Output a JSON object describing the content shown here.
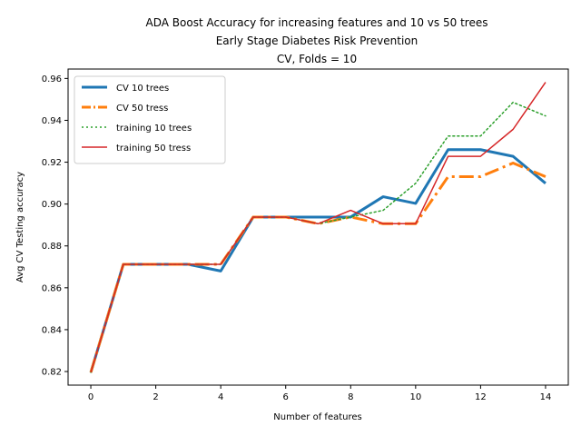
{
  "chart_data": {
    "type": "line",
    "title_lines": [
      "ADA Boost Accuracy for increasing features and 10 vs 50 trees",
      "Early Stage Diabetes Risk Prevention",
      "CV, Folds = 10"
    ],
    "xlabel": "Number of features",
    "ylabel": "Avg CV Testing accuracy",
    "xlim": [
      -0.7,
      14.7
    ],
    "ylim": [
      0.8135,
      0.9645
    ],
    "x_ticks": [
      0,
      2,
      4,
      6,
      8,
      10,
      12,
      14
    ],
    "y_ticks": [
      0.82,
      0.84,
      0.86,
      0.88,
      0.9,
      0.92,
      0.94,
      0.96
    ],
    "y_tick_labels": [
      "0.82",
      "0.84",
      "0.86",
      "0.88",
      "0.90",
      "0.92",
      "0.94",
      "0.96"
    ],
    "grid": false,
    "legend_position": "upper-left",
    "x": [
      0,
      1,
      2,
      3,
      4,
      5,
      6,
      7,
      8,
      9,
      10,
      11,
      12,
      13,
      14
    ],
    "series": [
      {
        "name": "CV 10 trees",
        "color": "#1f77b4",
        "style": "solid",
        "width": 3,
        "values": [
          0.8196,
          0.8712,
          0.8712,
          0.8712,
          0.868,
          0.8938,
          0.8938,
          0.8938,
          0.8938,
          0.9035,
          0.9003,
          0.926,
          0.926,
          0.9228,
          0.9099
        ]
      },
      {
        "name": "CV 50 tress",
        "color": "#ff7f0e",
        "style": "dashdot",
        "width": 3,
        "values": [
          0.8196,
          0.8712,
          0.8712,
          0.8712,
          0.8712,
          0.8938,
          0.8938,
          0.8906,
          0.8938,
          0.8906,
          0.8906,
          0.9131,
          0.9131,
          0.9196,
          0.9131
        ]
      },
      {
        "name": "training 10 trees",
        "color": "#2ca02c",
        "style": "dotted",
        "width": 1.5,
        "values": [
          0.8196,
          0.8712,
          0.8712,
          0.8712,
          0.8712,
          0.8938,
          0.8938,
          0.8906,
          0.8938,
          0.897,
          0.9099,
          0.9325,
          0.9325,
          0.9486,
          0.9421
        ]
      },
      {
        "name": "training 50 tress",
        "color": "#d62728",
        "style": "solid",
        "width": 1.5,
        "values": [
          0.8196,
          0.8712,
          0.8712,
          0.8712,
          0.8712,
          0.8938,
          0.8938,
          0.8906,
          0.897,
          0.8906,
          0.8906,
          0.9228,
          0.9228,
          0.9357,
          0.9582
        ]
      }
    ]
  }
}
